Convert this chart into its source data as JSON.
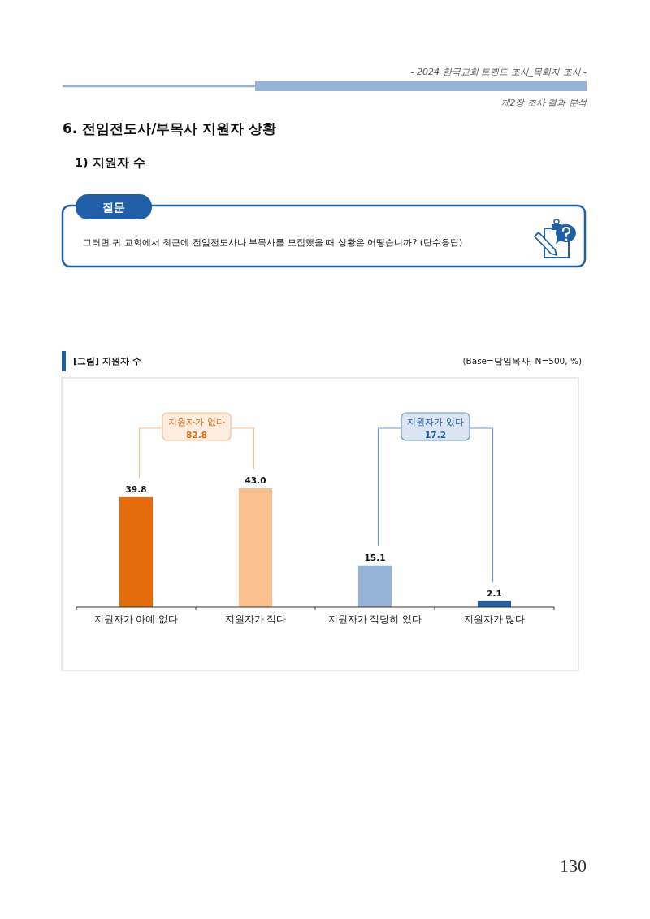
{
  "chart_data": {
    "type": "bar",
    "title": "[그림] 지원자 수",
    "subtitle": "(Base=담임목사, N=500, %)",
    "categories": [
      "지원자가 아예 없다",
      "지원자가 적다",
      "지원자가 적당히 있다",
      "지원자가 많다"
    ],
    "values": [
      39.8,
      43.0,
      15.1,
      2.1
    ],
    "value_labels": [
      "39.8",
      "43.0",
      "15.1",
      "2.1"
    ],
    "colors": [
      "#e46c0a",
      "#fac090",
      "#95b3d7",
      "#1f5fa8"
    ],
    "annotations": [
      "- 2024 한국교회 트렌드 조사_목회자 조사 -",
      "제2장 조사 결과 분석",
      "6. 전임전도사/부목사 지원자 상황",
      "1) 지원자 수",
      "질문",
      "그러면 귀 교회에서 최근에 전임전도사나 부목사를 모집했을 때 상황은 어떻습니까? (단수응답)",
      "지원자가 없다",
      "82.8",
      "지원자가 있다",
      "17.2",
      "130"
    ]
  }
}
